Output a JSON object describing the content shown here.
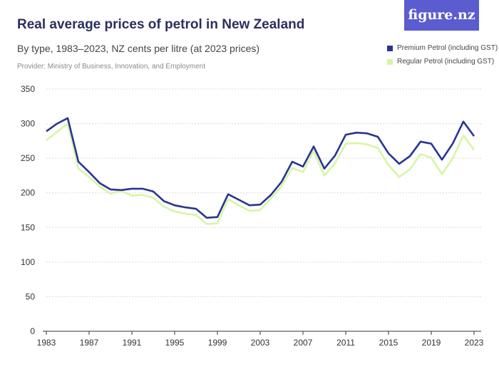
{
  "header": {
    "title": "Real average prices of petrol in New Zealand",
    "subtitle": "By type, 1983–2023, NZ cents per litre (at 2023 prices)",
    "provider": "Provider: Ministry of Business, Innovation, and Employment",
    "brand": "figure.nz"
  },
  "colors": {
    "premium": "#283593",
    "regular": "#d6f5a6",
    "grid": "#d9d9d9",
    "brand_bg": "#5b5ccf"
  },
  "chart_data": {
    "type": "line",
    "title": "Real average prices of petrol in New Zealand",
    "subtitle": "By type, 1983–2023, NZ cents per litre (at 2023 prices)",
    "x": [
      1983,
      1984,
      1985,
      1986,
      1987,
      1988,
      1989,
      1990,
      1991,
      1992,
      1993,
      1994,
      1995,
      1996,
      1997,
      1998,
      1999,
      2000,
      2001,
      2002,
      2003,
      2004,
      2005,
      2006,
      2007,
      2008,
      2009,
      2010,
      2011,
      2012,
      2013,
      2014,
      2015,
      2016,
      2017,
      2018,
      2019,
      2020,
      2021,
      2022,
      2023
    ],
    "xticks": [
      1983,
      1987,
      1991,
      1995,
      1999,
      2003,
      2007,
      2011,
      2015,
      2019,
      2023
    ],
    "yticks": [
      0,
      50,
      100,
      150,
      200,
      250,
      300,
      350
    ],
    "ylim": [
      0,
      350
    ],
    "grid": true,
    "legend_position": "top-right",
    "series": [
      {
        "name": "Premium Petrol (including GST)",
        "values": [
          289,
          300,
          308,
          245,
          230,
          214,
          205,
          204,
          206,
          206,
          202,
          188,
          182,
          179,
          177,
          164,
          165,
          198,
          190,
          182,
          183,
          197,
          216,
          245,
          238,
          267,
          235,
          254,
          284,
          287,
          286,
          281,
          257,
          242,
          253,
          274,
          271,
          248,
          271,
          303,
          282
        ]
      },
      {
        "name": "Regular Petrol (including GST)",
        "values": [
          276,
          288,
          300,
          235,
          223,
          209,
          199,
          203,
          196,
          197,
          193,
          180,
          173,
          170,
          168,
          155,
          156,
          191,
          182,
          174,
          175,
          192,
          210,
          236,
          230,
          261,
          225,
          243,
          271,
          272,
          270,
          265,
          240,
          223,
          234,
          256,
          251,
          227,
          250,
          283,
          262
        ]
      }
    ]
  }
}
